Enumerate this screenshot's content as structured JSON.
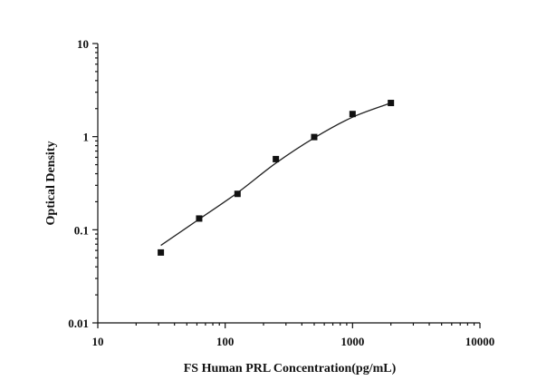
{
  "chart_data": {
    "type": "scatter",
    "title": "",
    "xlabel": "FS Human PRL Concentration(pg/mL)",
    "ylabel": "Optical Density",
    "xscale": "log",
    "yscale": "log",
    "xlim": [
      10,
      10000
    ],
    "ylim": [
      0.01,
      10
    ],
    "x_ticks": [
      "10",
      "100",
      "1000",
      "10000"
    ],
    "y_ticks": [
      "0.01",
      "0.1",
      "1",
      "10"
    ],
    "grid": false,
    "legend": "none",
    "series": [
      {
        "kind": "points",
        "x": [
          31.25,
          62.5,
          125,
          250,
          500,
          1000,
          2000
        ],
        "y": [
          0.057,
          0.132,
          0.243,
          0.574,
          0.99,
          1.75,
          2.3
        ]
      },
      {
        "kind": "fitted-curve",
        "x": [
          31.25,
          62.5,
          125,
          250,
          500,
          1000,
          2000
        ],
        "y": [
          0.068,
          0.13,
          0.25,
          0.52,
          0.97,
          1.62,
          2.3
        ]
      }
    ]
  }
}
